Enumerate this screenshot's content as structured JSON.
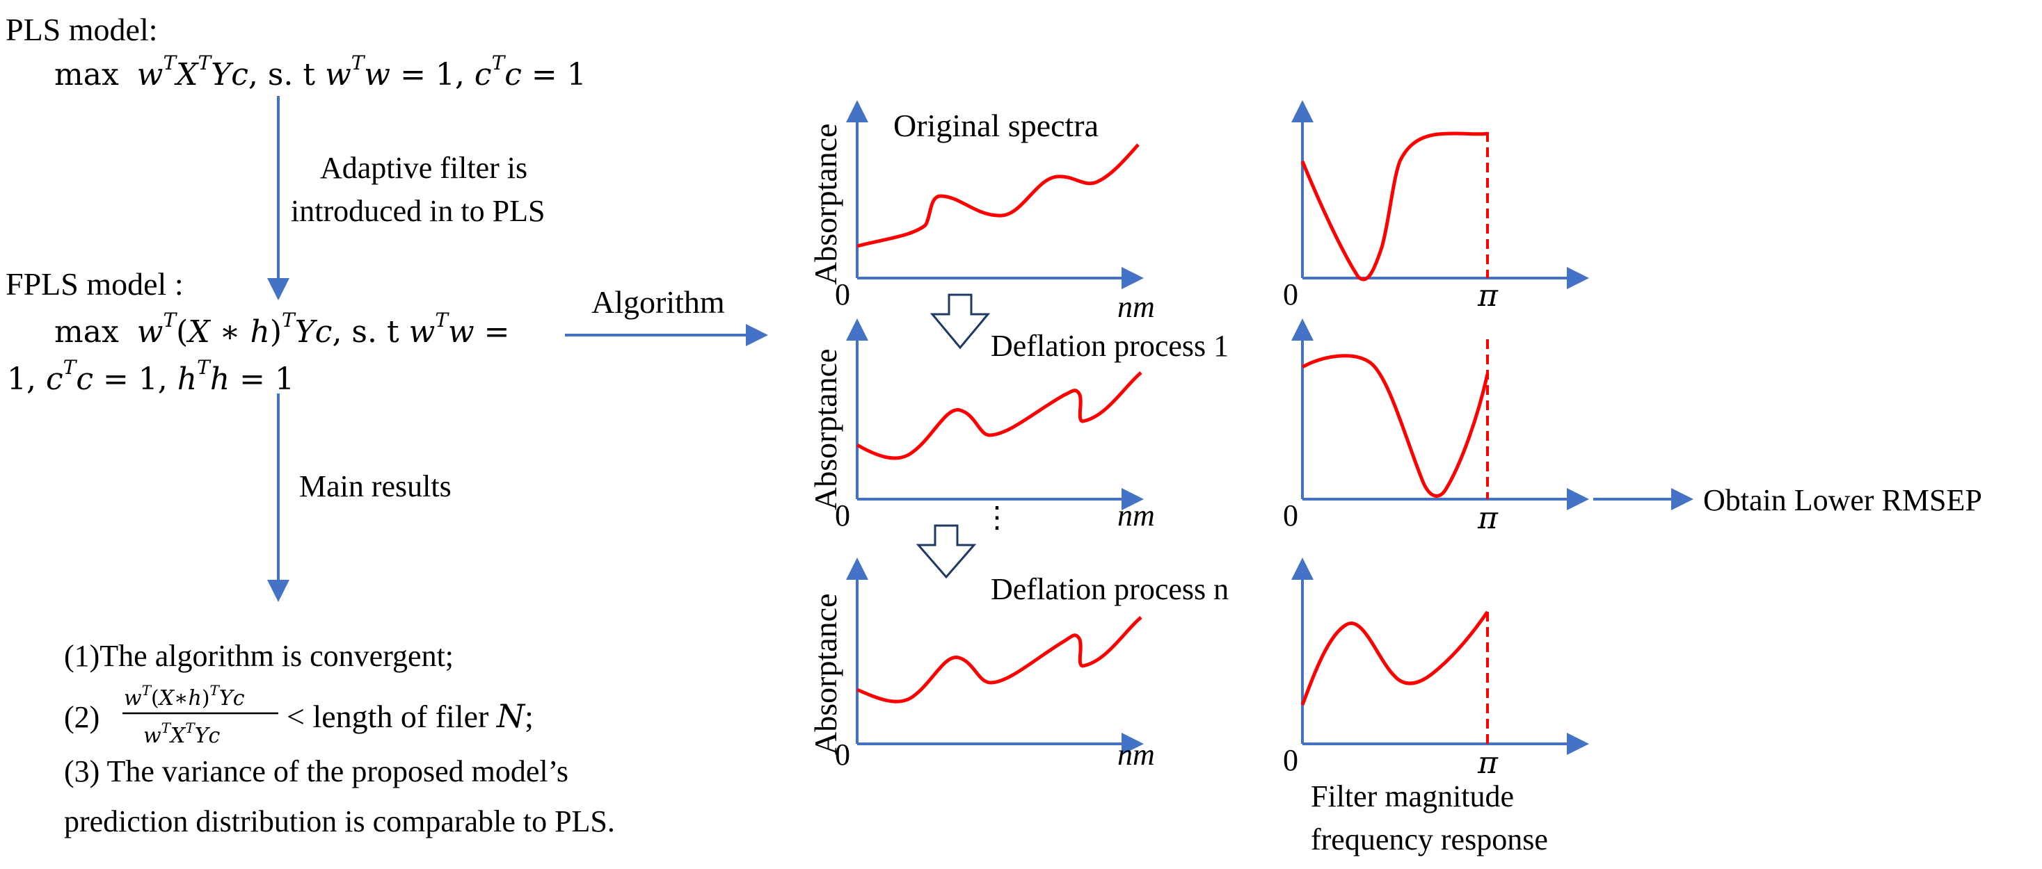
{
  "pls": {
    "title": "PLS model:",
    "formula": {
      "max": "max",
      "w": "w",
      "T": "T",
      "X": "X",
      "Yc": "Yc",
      "st": ", s. t ",
      "eq1": " = 1, ",
      "c": "c",
      "eq2": " = 1"
    },
    "arrow_label_line1": "Adaptive filter is",
    "arrow_label_line2": "introduced in to PLS"
  },
  "fpls": {
    "title": "FPLS model :",
    "formula": {
      "max": "max",
      "w": "w",
      "T": "T",
      "open": "(",
      "X": "X",
      "star": " ∗ ",
      "h": "h",
      "close": ")",
      "Yc": "Yc",
      "st": ", s. t ",
      "eq_end": " =",
      "one": "1, ",
      "c": "c",
      "eq1": " = 1, ",
      "eq2": " = 1"
    },
    "arrow_label": "Main results"
  },
  "algorithm_label": "Algorithm",
  "results": {
    "item1": "(1)The algorithm is convergent;",
    "item2_prefix": "(2)",
    "item2_num": {
      "w": "w",
      "T": "T",
      "open": "(",
      "X": "X",
      "star": "∗",
      "h": "h",
      "close": ")",
      "Yc": "Yc"
    },
    "item2_den": {
      "w": "w",
      "T": "T",
      "X": "X",
      "Yc": "Yc"
    },
    "item2_suffix": "< length of filer ",
    "item2_N": "N",
    "item2_end": ";",
    "item3_line1": "(3) The variance of the proposed model’s",
    "item3_line2": "prediction distribution is comparable to PLS."
  },
  "spectra": {
    "ylabel": "Absorptance",
    "xlabel": "nm",
    "zero": "0",
    "top_title": "Original spectra",
    "deflation1": "Deflation process 1",
    "deflation_n": "Deflation process n",
    "dots": "⋮"
  },
  "filters": {
    "pi": "π",
    "zero": "0",
    "caption_line1": "Filter magnitude",
    "caption_line2": "frequency response"
  },
  "output_label": "Obtain Lower RMSEP",
  "colors": {
    "arrow": "#4472C4",
    "curve": "#FF0000",
    "text": "#000000"
  }
}
